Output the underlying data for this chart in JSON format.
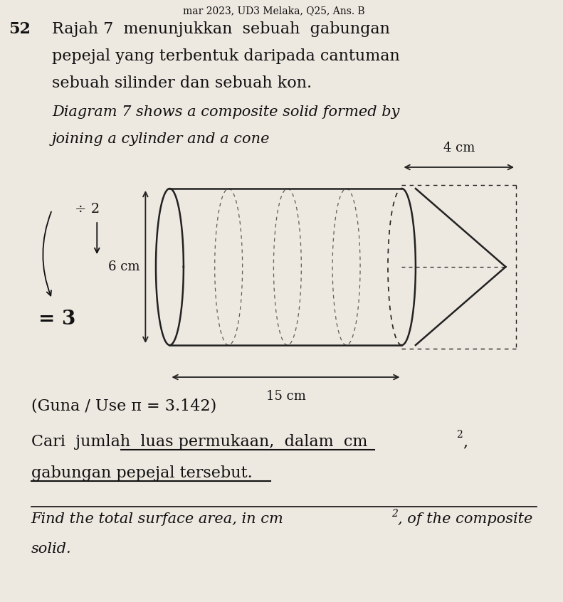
{
  "header": "mar 2023, UD3 Melaka, Q25, Ans. B",
  "question_number": "52",
  "text_line1": "Rajah 7  menunjukkan  sebuah  gabungan",
  "text_line2": "pepejal yang terbentuk daripada cantuman",
  "text_line3": "sebuah silinder dan sebuah kon.",
  "italic_line1": "Diagram 7 shows a composite solid formed by",
  "italic_line2": "joining a cylinder and a cone",
  "dim_height": "6 cm",
  "dim_width": "15 cm",
  "dim_cone": "4 cm",
  "note_div2": "÷ 2",
  "note_eq3": "= 3",
  "pi_note": "(Guna / Use π = 3.142)",
  "malay_q1": "Cari  jumlah  luas permukaan,  dalam  cm",
  "malay_q2": "gabungan pepejal tersebut.",
  "eng_q1": "Find the total surface area, in cm",
  "eng_q1_end": ", of the composite",
  "eng_q2": "solid.",
  "bg_color": "#ede8e0",
  "text_color": "#111111",
  "diagram_color": "#222222",
  "font_size_main": 16,
  "font_size_italic": 15,
  "font_size_label": 13,
  "font_size_small": 11
}
